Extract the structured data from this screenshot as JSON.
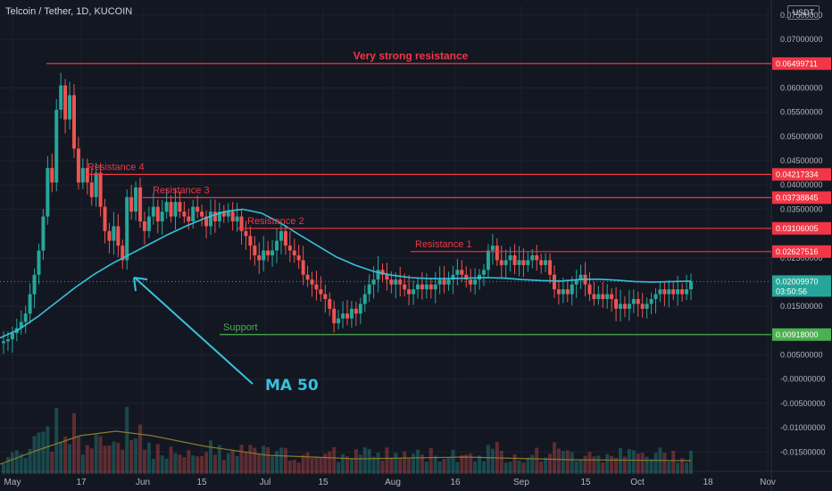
{
  "header": {
    "symbol": "Telcoin / Tether, 1D, KUCOIN"
  },
  "currency": "USDT",
  "colors": {
    "background": "#131722",
    "up": "#26a69a",
    "down": "#ef5350",
    "resistance": "#f23645",
    "support": "#4caf50",
    "ma": "#36c2dd",
    "volume_ma": "#8a7a2c",
    "text": "#b2b5be"
  },
  "chart_data": {
    "type": "candlestick",
    "title": "",
    "ylim": [
      -0.019,
      0.077
    ],
    "y_ticks": [
      "0.07500000",
      "0.07000000",
      "0.06000000",
      "0.05500000",
      "0.05000000",
      "0.04500000",
      "0.04000000",
      "0.03500000",
      "0.02500000",
      "0.01500000",
      "0.00500000",
      "-0.00000000",
      "-0.00500000",
      "-0.01000000",
      "-0.01500000"
    ],
    "x_ticks": [
      "May",
      "17",
      "Jun",
      "15",
      "Jul",
      "15",
      "Aug",
      "16",
      "Sep",
      "15",
      "Oct",
      "18",
      "Nov"
    ],
    "last_price": "0.02009970",
    "countdown": "03:50:56",
    "levels": [
      {
        "name": "Very strong resistance",
        "value": 0.06499711,
        "tag": "0.06499711"
      },
      {
        "name": "Resistance 4",
        "value": 0.04217334,
        "tag": "0.04217334"
      },
      {
        "name": "Resistance 3",
        "value": 0.03738845,
        "tag": "0.03738845"
      },
      {
        "name": "Resistance 2",
        "value": 0.03106005,
        "tag": "0.03106005"
      },
      {
        "name": "Resistance 1",
        "value": 0.02627516,
        "tag": "0.02627516"
      },
      {
        "name": "Support",
        "value": 0.00918,
        "tag": "0.00918000"
      }
    ],
    "annotation": "MA 50",
    "closes": [
      0.0078,
      0.0082,
      0.0095,
      0.0105,
      0.0118,
      0.0135,
      0.0175,
      0.0215,
      0.0265,
      0.0335,
      0.0435,
      0.0405,
      0.0555,
      0.0605,
      0.0535,
      0.0585,
      0.0475,
      0.0405,
      0.0435,
      0.0405,
      0.0375,
      0.0425,
      0.0355,
      0.0305,
      0.0285,
      0.0315,
      0.0275,
      0.0245,
      0.0375,
      0.0345,
      0.0395,
      0.0325,
      0.0305,
      0.0335,
      0.0355,
      0.0325,
      0.0345,
      0.0365,
      0.0335,
      0.0365,
      0.0345,
      0.0335,
      0.0325,
      0.0355,
      0.0345,
      0.0335,
      0.0315,
      0.0345,
      0.0325,
      0.0345,
      0.0335,
      0.0345,
      0.0325,
      0.0335,
      0.0305,
      0.0295,
      0.0275,
      0.0255,
      0.0245,
      0.0265,
      0.0255,
      0.0265,
      0.0285,
      0.0305,
      0.0275,
      0.0265,
      0.0255,
      0.0245,
      0.0215,
      0.0205,
      0.0195,
      0.0185,
      0.0175,
      0.0165,
      0.0145,
      0.0115,
      0.0125,
      0.0135,
      0.0125,
      0.0145,
      0.0135,
      0.0155,
      0.0175,
      0.0195,
      0.0205,
      0.0225,
      0.0215,
      0.0205,
      0.0195,
      0.0205,
      0.0195,
      0.0185,
      0.0175,
      0.0185,
      0.0195,
      0.0185,
      0.0195,
      0.0185,
      0.0195,
      0.0205,
      0.0195,
      0.0205,
      0.0215,
      0.0225,
      0.0215,
      0.0205,
      0.0195,
      0.0205,
      0.0215,
      0.0225,
      0.0265,
      0.0275,
      0.0245,
      0.0235,
      0.0245,
      0.0255,
      0.0235,
      0.0245,
      0.0235,
      0.0245,
      0.0255,
      0.0245,
      0.0235,
      0.0245,
      0.0215,
      0.0185,
      0.0175,
      0.0185,
      0.0175,
      0.0195,
      0.0205,
      0.0215,
      0.0195,
      0.0175,
      0.0165,
      0.0175,
      0.0165,
      0.0175,
      0.0165,
      0.0145,
      0.0155,
      0.0145,
      0.0155,
      0.0165,
      0.0155,
      0.0145,
      0.0155,
      0.0165,
      0.0175,
      0.0185,
      0.0175,
      0.0185,
      0.0175,
      0.0185,
      0.0175,
      0.0185,
      0.0201
    ],
    "ma50": [
      0.0085,
      0.0102,
      0.0128,
      0.0158,
      0.0188,
      0.0215,
      0.0238,
      0.0258,
      0.0278,
      0.0298,
      0.0316,
      0.0332,
      0.0345,
      0.035,
      0.0342,
      0.0322,
      0.0298,
      0.0275,
      0.0252,
      0.0235,
      0.0222,
      0.0214,
      0.0209,
      0.0207,
      0.0207,
      0.0208,
      0.0209,
      0.0208,
      0.0205,
      0.0203,
      0.0202,
      0.0205,
      0.0206,
      0.0204,
      0.0201,
      0.02,
      0.0201,
      0.0202
    ]
  }
}
